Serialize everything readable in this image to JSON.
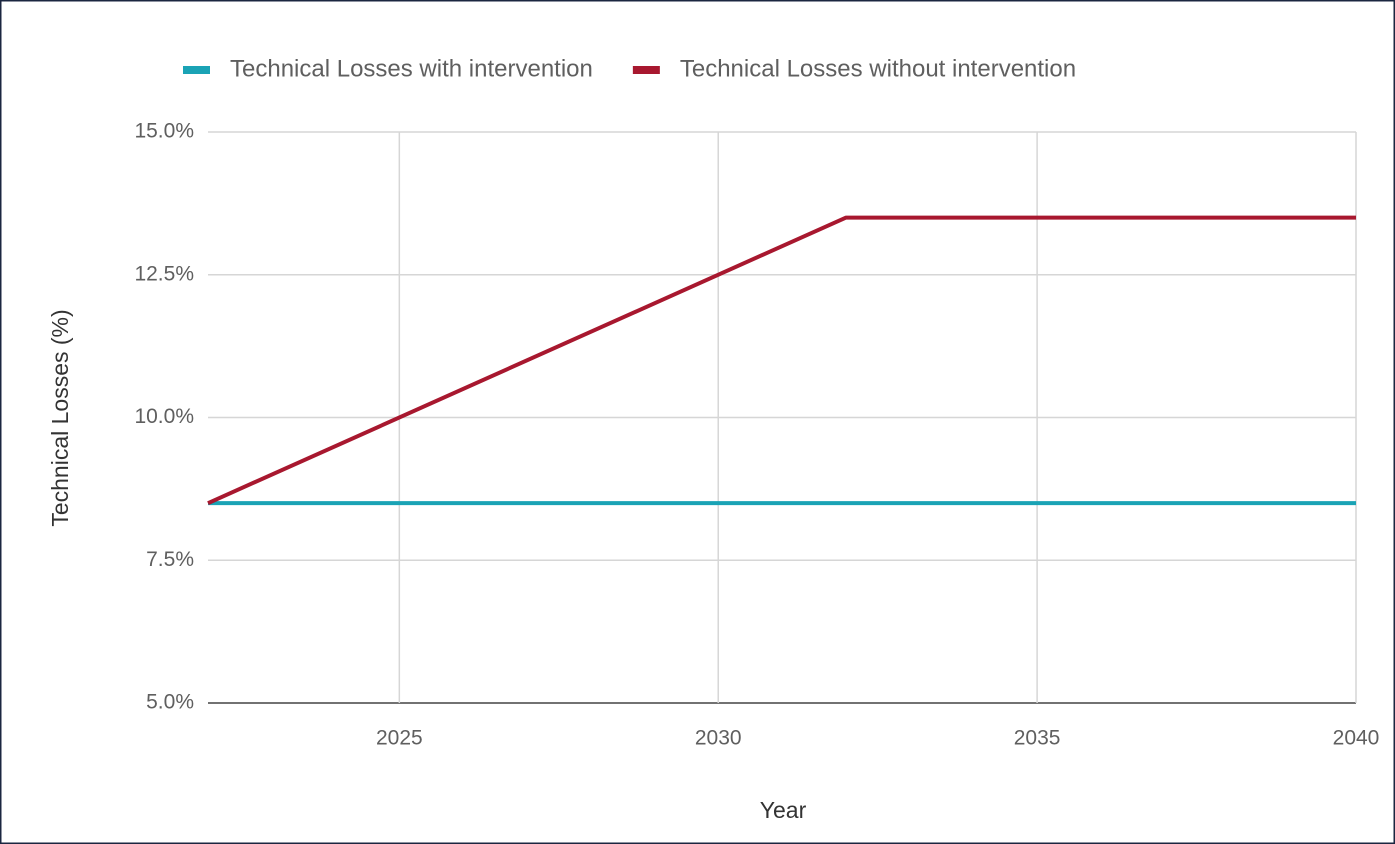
{
  "chart_data": {
    "type": "line",
    "x": [
      2022,
      2032,
      2040
    ],
    "series": [
      {
        "name": "Technical Losses with intervention",
        "color": "#1aa3b5",
        "values": [
          8.5,
          8.5,
          8.5
        ]
      },
      {
        "name": "Technical Losses without intervention",
        "color": "#a8182f",
        "values": [
          8.5,
          13.5,
          13.5
        ]
      }
    ],
    "xlabel": "Year",
    "ylabel": "Technical Losses (%)",
    "xlim": [
      2022,
      2040
    ],
    "xticks": [
      2025,
      2030,
      2035,
      2040
    ],
    "ylim": [
      5,
      15
    ],
    "yticks": [
      {
        "value": 5,
        "label": "5.0%"
      },
      {
        "value": 7.5,
        "label": "7.5%"
      },
      {
        "value": 10,
        "label": "10.0%"
      },
      {
        "value": 12.5,
        "label": "12.5%"
      },
      {
        "value": 15,
        "label": "15.0%"
      }
    ],
    "grid": true,
    "legend": "top"
  }
}
